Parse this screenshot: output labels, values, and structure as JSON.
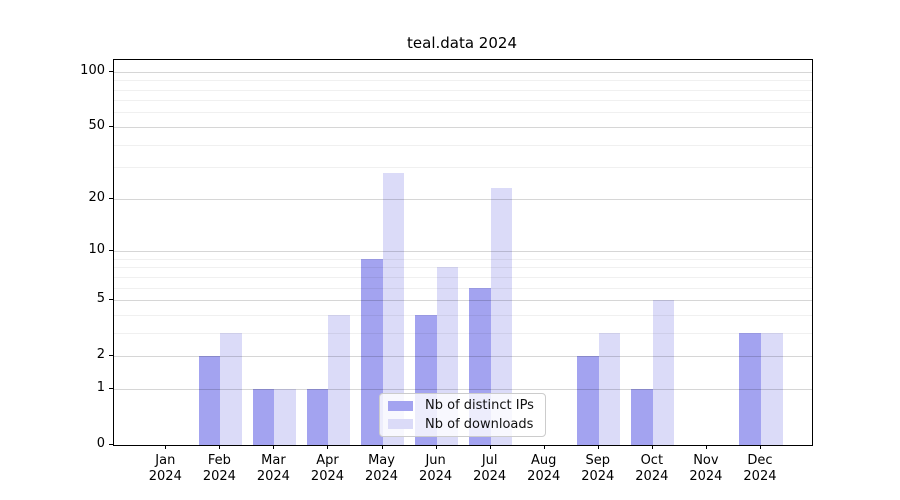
{
  "chart_data": {
    "type": "bar",
    "title": "teal.data 2024",
    "categories": [
      "Jan",
      "Feb",
      "Mar",
      "Apr",
      "May",
      "Jun",
      "Jul",
      "Aug",
      "Sep",
      "Oct",
      "Nov",
      "Dec"
    ],
    "year_label": "2024",
    "series": [
      {
        "name": "Nb of distinct IPs",
        "color": "#a3a3f0",
        "values": [
          0,
          2,
          1,
          1,
          9,
          4,
          6,
          0,
          2,
          1,
          0,
          3
        ]
      },
      {
        "name": "Nb of downloads",
        "color": "#dbdbf8",
        "values": [
          0,
          3,
          1,
          4,
          28,
          8,
          23,
          0,
          3,
          5,
          0,
          3
        ]
      }
    ],
    "yscale": "log(value+1)",
    "y_major_ticks": [
      0,
      1,
      2,
      5,
      10,
      20,
      50,
      100
    ],
    "y_minor_gridlines": [
      3,
      4,
      6,
      7,
      8,
      9,
      30,
      40,
      60,
      70,
      80,
      90
    ],
    "ylim": [
      0,
      116
    ],
    "grid": "on",
    "legend_position": "lower center",
    "xlabel": "",
    "ylabel": ""
  }
}
